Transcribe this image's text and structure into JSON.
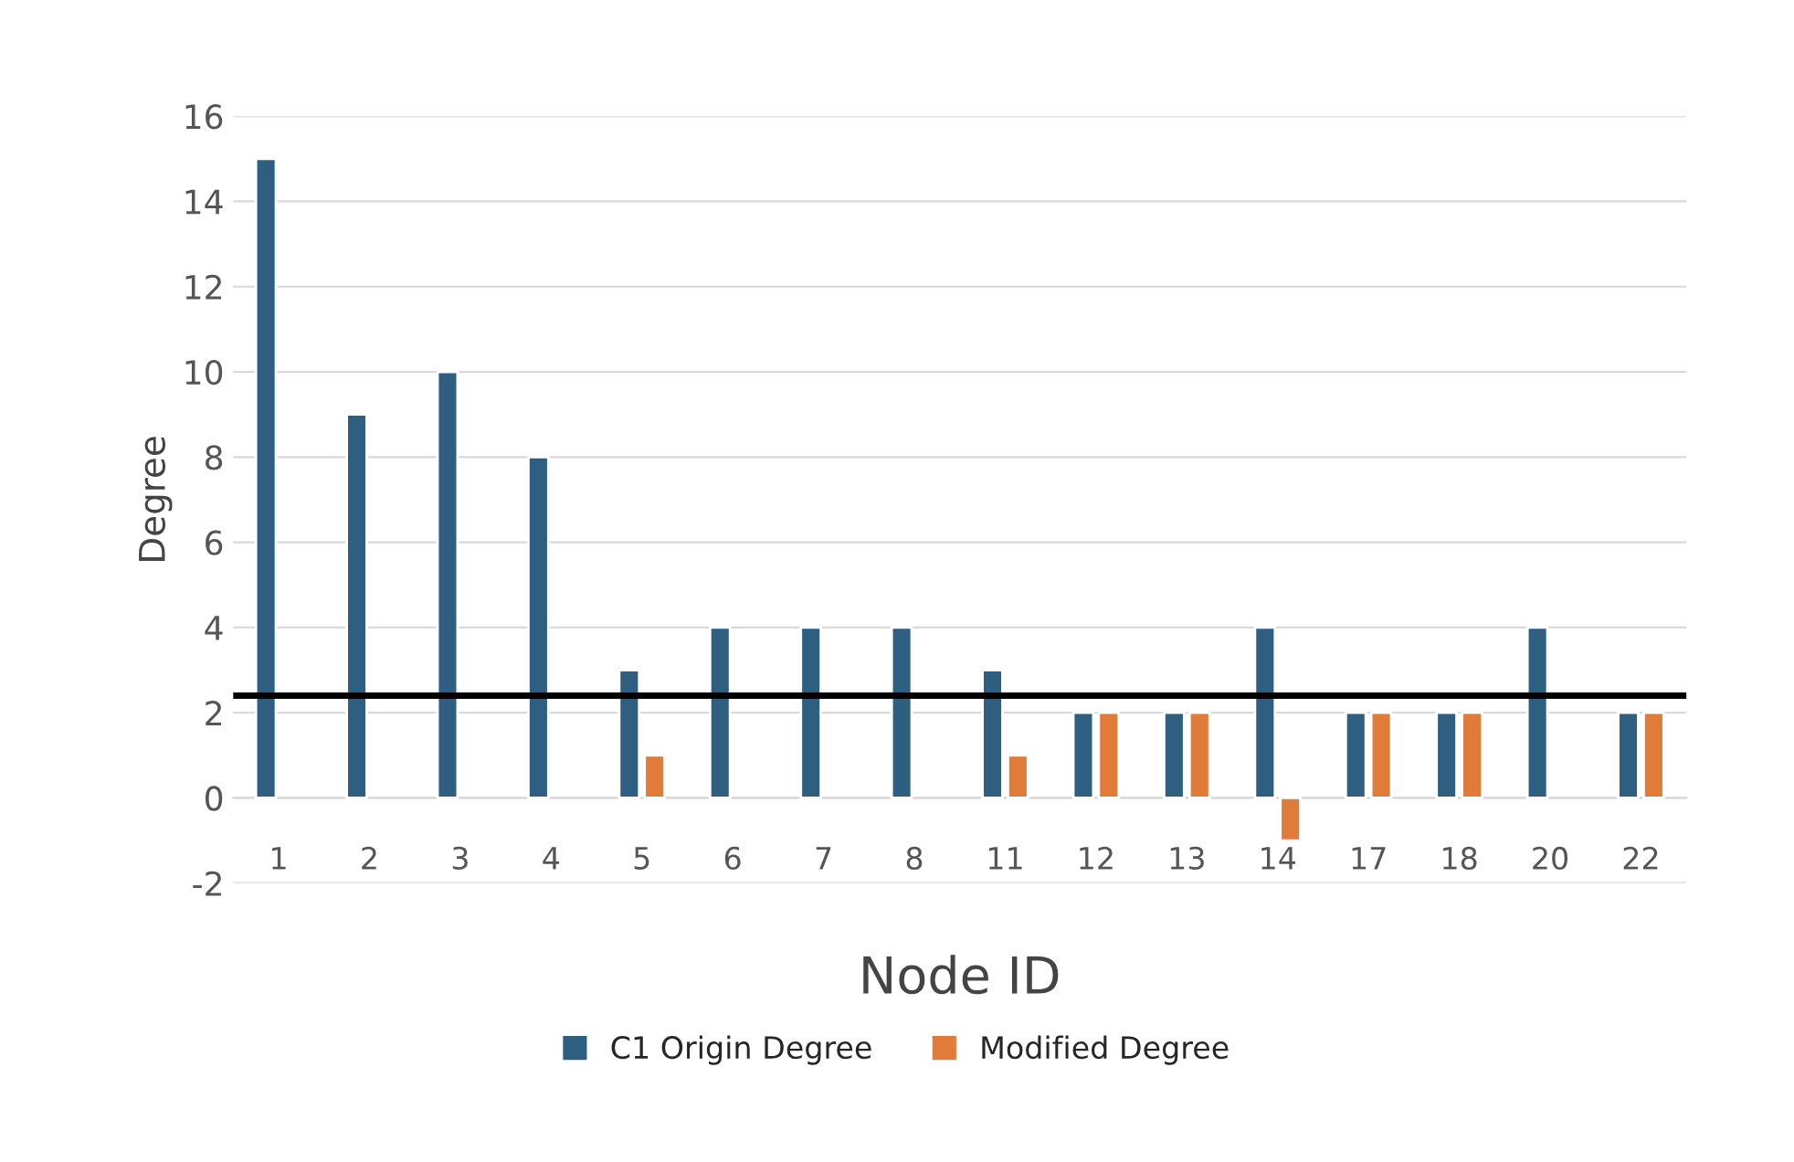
{
  "chart_data": {
    "type": "bar",
    "xlabel": "Node ID",
    "ylabel": "Degree",
    "categories": [
      "1",
      "2",
      "3",
      "4",
      "5",
      "6",
      "7",
      "8",
      "11",
      "12",
      "13",
      "14",
      "17",
      "18",
      "20",
      "22"
    ],
    "series": [
      {
        "name": "C1 Origin Degree",
        "color": "#2e5f80",
        "values": [
          15,
          9,
          10,
          8,
          3,
          4,
          4,
          4,
          3,
          2,
          2,
          4,
          2,
          2,
          4,
          2
        ]
      },
      {
        "name": "Modified Degree",
        "color": "#e07b39",
        "values": [
          null,
          null,
          null,
          null,
          1,
          null,
          null,
          null,
          1,
          2,
          2,
          -1,
          2,
          2,
          null,
          2
        ]
      }
    ],
    "ylim": [
      -2,
      16
    ],
    "yticks": [
      -2,
      0,
      2,
      4,
      6,
      8,
      10,
      12,
      14,
      16
    ],
    "grid": "y",
    "legend": "bottom",
    "ref_lines": [
      {
        "axis": "y",
        "value": 2.4,
        "color": "#000000"
      }
    ]
  }
}
